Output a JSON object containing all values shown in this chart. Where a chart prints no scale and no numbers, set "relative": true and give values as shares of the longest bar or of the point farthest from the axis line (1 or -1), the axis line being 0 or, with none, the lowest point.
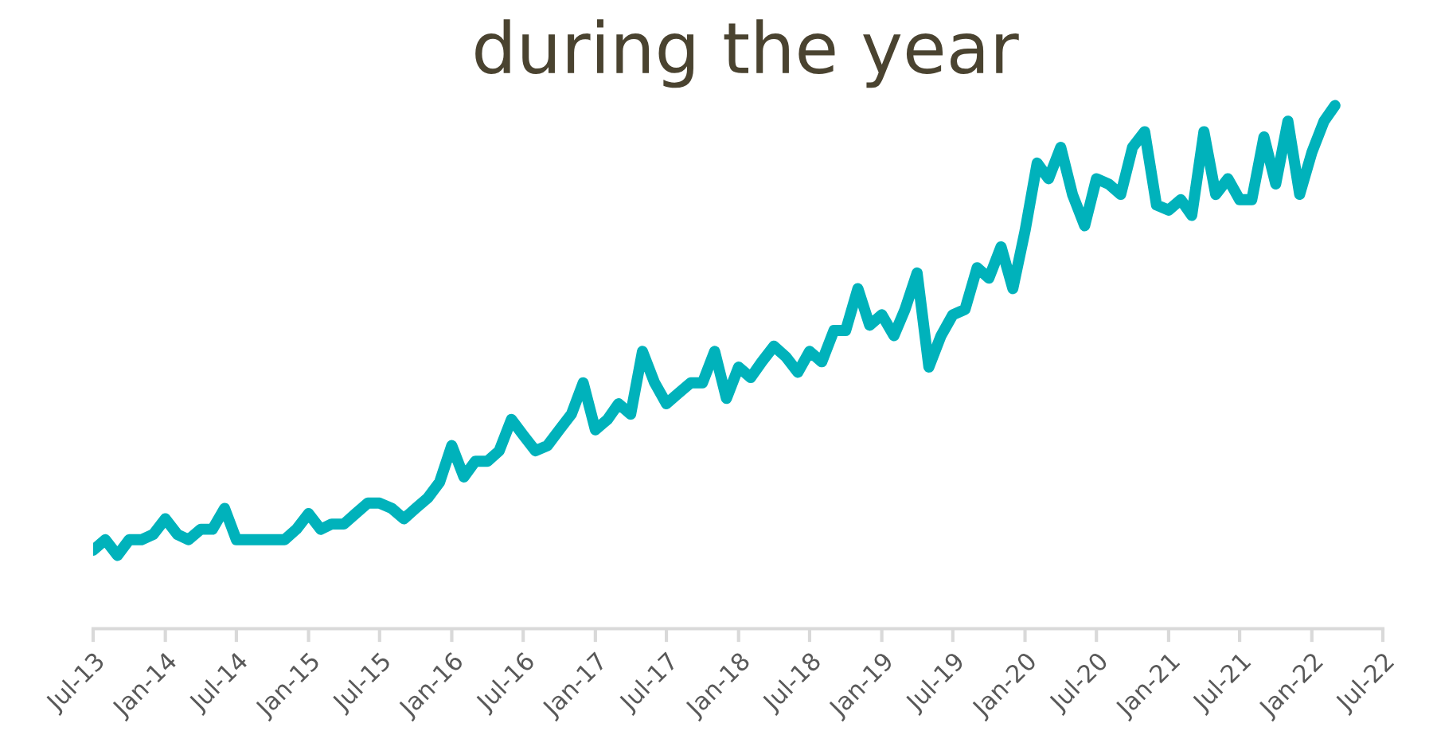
{
  "chart_data": {
    "type": "line",
    "title": "during the year",
    "relative": true,
    "grid": false,
    "legend": false,
    "marker": "none",
    "line_style": "solid",
    "x": [
      "2013-07",
      "2013-08",
      "2013-09",
      "2013-10",
      "2013-11",
      "2013-12",
      "2014-01",
      "2014-02",
      "2014-03",
      "2014-04",
      "2014-05",
      "2014-06",
      "2014-07",
      "2014-08",
      "2014-09",
      "2014-10",
      "2014-11",
      "2014-12",
      "2015-01",
      "2015-02",
      "2015-03",
      "2015-04",
      "2015-05",
      "2015-06",
      "2015-07",
      "2015-08",
      "2015-09",
      "2015-10",
      "2015-11",
      "2015-12",
      "2016-01",
      "2016-02",
      "2016-03",
      "2016-04",
      "2016-05",
      "2016-06",
      "2016-07",
      "2016-08",
      "2016-09",
      "2016-10",
      "2016-11",
      "2016-12",
      "2017-01",
      "2017-02",
      "2017-03",
      "2017-04",
      "2017-05",
      "2017-06",
      "2017-07",
      "2017-08",
      "2017-09",
      "2017-10",
      "2017-11",
      "2017-12",
      "2018-01",
      "2018-02",
      "2018-03",
      "2018-04",
      "2018-05",
      "2018-06",
      "2018-07",
      "2018-08",
      "2018-09",
      "2018-10",
      "2018-11",
      "2018-12",
      "2019-01",
      "2019-02",
      "2019-03",
      "2019-04",
      "2019-05",
      "2019-06",
      "2019-07",
      "2019-08",
      "2019-09",
      "2019-10",
      "2019-11",
      "2019-12",
      "2020-01",
      "2020-02",
      "2020-03",
      "2020-04",
      "2020-05",
      "2020-06",
      "2020-07",
      "2020-08",
      "2020-09",
      "2020-10",
      "2020-11",
      "2020-12",
      "2021-01",
      "2021-02",
      "2021-03",
      "2021-04",
      "2021-05",
      "2021-06",
      "2021-07",
      "2021-08",
      "2021-09",
      "2021-10",
      "2021-11",
      "2021-12",
      "2022-01",
      "2022-02",
      "2022-03"
    ],
    "series": [
      {
        "color": "#00b2bb",
        "values": [
          0.15,
          0.17,
          0.14,
          0.17,
          0.17,
          0.18,
          0.21,
          0.18,
          0.17,
          0.19,
          0.19,
          0.23,
          0.17,
          0.17,
          0.17,
          0.17,
          0.17,
          0.19,
          0.22,
          0.19,
          0.2,
          0.2,
          0.22,
          0.24,
          0.24,
          0.23,
          0.21,
          0.23,
          0.25,
          0.28,
          0.35,
          0.29,
          0.32,
          0.32,
          0.34,
          0.4,
          0.37,
          0.34,
          0.35,
          0.38,
          0.41,
          0.47,
          0.38,
          0.4,
          0.43,
          0.41,
          0.53,
          0.47,
          0.43,
          0.45,
          0.47,
          0.47,
          0.53,
          0.44,
          0.5,
          0.48,
          0.51,
          0.54,
          0.52,
          0.49,
          0.53,
          0.51,
          0.57,
          0.57,
          0.65,
          0.58,
          0.6,
          0.56,
          0.61,
          0.68,
          0.5,
          0.56,
          0.6,
          0.61,
          0.69,
          0.67,
          0.73,
          0.65,
          0.76,
          0.89,
          0.86,
          0.92,
          0.83,
          0.77,
          0.86,
          0.85,
          0.83,
          0.92,
          0.95,
          0.81,
          0.8,
          0.82,
          0.79,
          0.95,
          0.83,
          0.86,
          0.82,
          0.82,
          0.94,
          0.85,
          0.97,
          0.83,
          0.91,
          0.97,
          1
        ]
      }
    ],
    "xlim": [
      "2013-07",
      "2022-07"
    ],
    "xticks": [
      {
        "value": "2013-07",
        "label": "Jul-13"
      },
      {
        "value": "2014-01",
        "label": "Jan-14"
      },
      {
        "value": "2014-07",
        "label": "Jul-14"
      },
      {
        "value": "2015-01",
        "label": "Jan-15"
      },
      {
        "value": "2015-07",
        "label": "Jul-15"
      },
      {
        "value": "2016-01",
        "label": "Jan-16"
      },
      {
        "value": "2016-07",
        "label": "Jul-16"
      },
      {
        "value": "2017-01",
        "label": "Jan-17"
      },
      {
        "value": "2017-07",
        "label": "Jul-17"
      },
      {
        "value": "2018-01",
        "label": "Jan-18"
      },
      {
        "value": "2018-07",
        "label": "Jul-18"
      },
      {
        "value": "2019-01",
        "label": "Jan-19"
      },
      {
        "value": "2019-07",
        "label": "Jul-19"
      },
      {
        "value": "2020-01",
        "label": "Jan-20"
      },
      {
        "value": "2020-07",
        "label": "Jul-20"
      },
      {
        "value": "2021-01",
        "label": "Jan-21"
      },
      {
        "value": "2021-07",
        "label": "Jul-21"
      },
      {
        "value": "2022-01",
        "label": "Jan-22"
      },
      {
        "value": "2022-07",
        "label": "Jul-22"
      }
    ]
  }
}
